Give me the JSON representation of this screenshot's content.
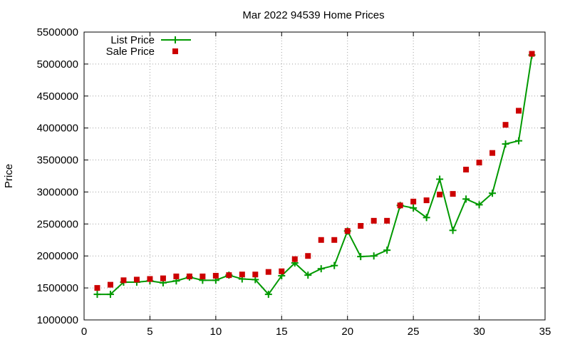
{
  "chart_data": {
    "type": "line",
    "title": "Mar 2022 94539 Home Prices",
    "ylabel": "Price",
    "xlabel": "",
    "xlim": [
      0,
      35
    ],
    "ylim": [
      1000000,
      5500000
    ],
    "x_ticks": [
      0,
      5,
      10,
      15,
      20,
      25,
      30,
      35
    ],
    "y_ticks": [
      1000000,
      1500000,
      2000000,
      2500000,
      3000000,
      3500000,
      4000000,
      4500000,
      5000000,
      5500000
    ],
    "grid": true,
    "legend_position": "top-left",
    "x": [
      1,
      2,
      3,
      4,
      5,
      6,
      7,
      8,
      9,
      10,
      11,
      12,
      13,
      14,
      15,
      16,
      17,
      18,
      19,
      20,
      21,
      22,
      23,
      24,
      25,
      26,
      27,
      28,
      29,
      30,
      31,
      32,
      33,
      34
    ],
    "series": [
      {
        "name": "List Price",
        "style": "line-with-plus-markers",
        "color": "#009900",
        "values": [
          1400000,
          1400000,
          1590000,
          1590000,
          1610000,
          1580000,
          1610000,
          1670000,
          1620000,
          1620000,
          1700000,
          1640000,
          1630000,
          1400000,
          1690000,
          1890000,
          1700000,
          1800000,
          1850000,
          2390000,
          1990000,
          2000000,
          2090000,
          2790000,
          2750000,
          2600000,
          3200000,
          2400000,
          2890000,
          2800000,
          2980000,
          3750000,
          3800000,
          5140000
        ]
      },
      {
        "name": "Sale Price",
        "style": "square-markers",
        "color": "#cc0000",
        "values": [
          1500000,
          1550000,
          1620000,
          1630000,
          1640000,
          1650000,
          1680000,
          1680000,
          1680000,
          1690000,
          1700000,
          1710000,
          1710000,
          1750000,
          1760000,
          1950000,
          2000000,
          2250000,
          2250000,
          2390000,
          2470000,
          2550000,
          2550000,
          2790000,
          2850000,
          2870000,
          2960000,
          2970000,
          3350000,
          3460000,
          3610000,
          4050000,
          4270000,
          5160000
        ]
      }
    ]
  }
}
